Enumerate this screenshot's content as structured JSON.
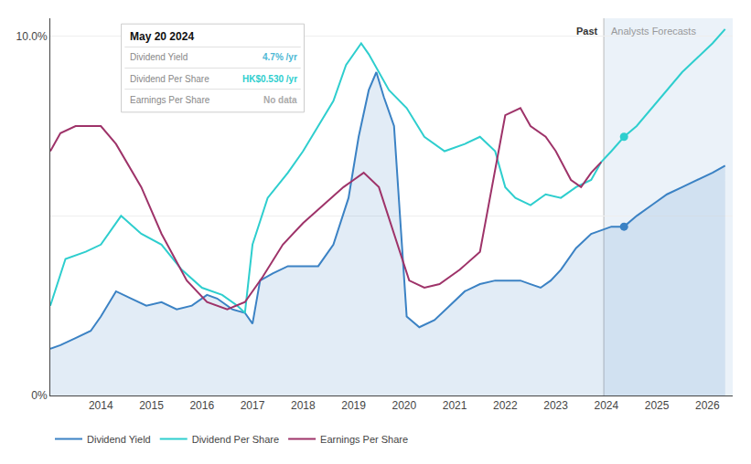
{
  "chart_data": {
    "type": "line",
    "xlim": [
      2013.0,
      2026.5
    ],
    "xticks": [
      2014,
      2015,
      2016,
      2017,
      2018,
      2019,
      2020,
      2021,
      2022,
      2023,
      2024,
      2025,
      2026
    ],
    "ylim": [
      0,
      10.5
    ],
    "yticks": [
      {
        "value": 0,
        "label": "0%"
      },
      {
        "value": 5,
        "label": null
      },
      {
        "value": 10,
        "label": "10.0%"
      }
    ],
    "grid": "y",
    "legend": "bottom",
    "divider_x": 2023.95,
    "annotations": [
      "Past",
      "Analysts Forecasts"
    ],
    "info_box": {
      "title": "May 20 2024",
      "rows": [
        {
          "label": "Dividend Yield",
          "value": "4.7% /yr",
          "color": "#4db8d4"
        },
        {
          "label": "Dividend Per Share",
          "value": "HK$0.530 /yr",
          "color": "#2ecece"
        },
        {
          "label": "Earnings Per Share",
          "value": "No data",
          "color": "#aaaaaa"
        }
      ]
    },
    "series": [
      {
        "name": "Dividend Yield",
        "color": "#3b82c4",
        "type": "area",
        "x": [
          2013.0,
          2013.2,
          2013.5,
          2013.8,
          2014.0,
          2014.3,
          2014.6,
          2014.9,
          2015.2,
          2015.5,
          2015.8,
          2016.1,
          2016.3,
          2016.6,
          2016.85,
          2017.0,
          2017.15,
          2017.4,
          2017.7,
          2018.0,
          2018.3,
          2018.6,
          2018.9,
          2019.1,
          2019.3,
          2019.45,
          2019.6,
          2019.8,
          2020.05,
          2020.3,
          2020.6,
          2020.9,
          2021.2,
          2021.5,
          2021.8,
          2022.0,
          2022.3,
          2022.5,
          2022.7,
          2022.9,
          2023.1,
          2023.4,
          2023.7,
          2023.9,
          2024.1,
          2024.35,
          2024.6,
          2024.9,
          2025.2,
          2025.5,
          2025.8,
          2026.1,
          2026.35
        ],
        "values": [
          1.3,
          1.4,
          1.6,
          1.8,
          2.2,
          2.9,
          2.7,
          2.5,
          2.6,
          2.4,
          2.5,
          2.8,
          2.7,
          2.4,
          2.3,
          2.0,
          3.2,
          3.4,
          3.6,
          3.6,
          3.6,
          4.2,
          5.5,
          7.2,
          8.5,
          9.0,
          8.3,
          7.5,
          2.2,
          1.9,
          2.1,
          2.5,
          2.9,
          3.1,
          3.2,
          3.2,
          3.2,
          3.1,
          3.0,
          3.2,
          3.5,
          4.1,
          4.5,
          4.6,
          4.7,
          4.7,
          5.0,
          5.3,
          5.6,
          5.8,
          6.0,
          6.2,
          6.4
        ],
        "highlight": {
          "x": 2024.35,
          "y": 4.7
        }
      },
      {
        "name": "Dividend Per Share",
        "color": "#2ecece",
        "type": "line",
        "x": [
          2013.0,
          2013.3,
          2013.7,
          2014.0,
          2014.4,
          2014.8,
          2015.2,
          2015.6,
          2016.0,
          2016.4,
          2016.7,
          2016.85,
          2017.0,
          2017.3,
          2017.7,
          2018.0,
          2018.3,
          2018.6,
          2018.85,
          2019.0,
          2019.15,
          2019.3,
          2019.5,
          2019.7,
          2020.05,
          2020.4,
          2020.8,
          2021.2,
          2021.5,
          2021.8,
          2022.0,
          2022.2,
          2022.5,
          2022.8,
          2023.1,
          2023.4,
          2023.7,
          2023.9,
          2024.1,
          2024.35,
          2024.6,
          2024.9,
          2025.2,
          2025.5,
          2025.8,
          2026.1,
          2026.35
        ],
        "values": [
          2.5,
          3.8,
          4.0,
          4.2,
          5.0,
          4.5,
          4.2,
          3.5,
          3.0,
          2.8,
          2.5,
          2.3,
          4.2,
          5.5,
          6.2,
          6.8,
          7.5,
          8.2,
          9.2,
          9.5,
          9.8,
          9.5,
          9.0,
          8.5,
          8.0,
          7.2,
          6.8,
          7.0,
          7.2,
          6.8,
          5.8,
          5.5,
          5.3,
          5.6,
          5.5,
          5.8,
          6.0,
          6.5,
          6.8,
          7.2,
          7.5,
          8.0,
          8.5,
          9.0,
          9.4,
          9.8,
          10.2
        ],
        "highlight": {
          "x": 2024.35,
          "y": 7.2
        }
      },
      {
        "name": "Earnings Per Share",
        "color": "#9e3369",
        "type": "line",
        "x": [
          2013.0,
          2013.2,
          2013.5,
          2014.0,
          2014.3,
          2014.8,
          2015.2,
          2015.7,
          2016.1,
          2016.5,
          2016.85,
          2017.2,
          2017.6,
          2018.0,
          2018.4,
          2018.8,
          2019.0,
          2019.2,
          2019.5,
          2019.8,
          2020.1,
          2020.4,
          2020.7,
          2021.1,
          2021.5,
          2022.0,
          2022.3,
          2022.5,
          2022.8,
          2023.0,
          2023.3,
          2023.5,
          2023.7,
          2023.9
        ],
        "values": [
          6.8,
          7.3,
          7.5,
          7.5,
          7.0,
          5.8,
          4.5,
          3.2,
          2.6,
          2.4,
          2.6,
          3.3,
          4.2,
          4.8,
          5.3,
          5.8,
          6.0,
          6.2,
          5.8,
          4.5,
          3.2,
          3.0,
          3.1,
          3.5,
          4.0,
          7.8,
          8.0,
          7.5,
          7.2,
          6.8,
          6.0,
          5.8,
          6.2,
          6.5
        ]
      }
    ]
  }
}
